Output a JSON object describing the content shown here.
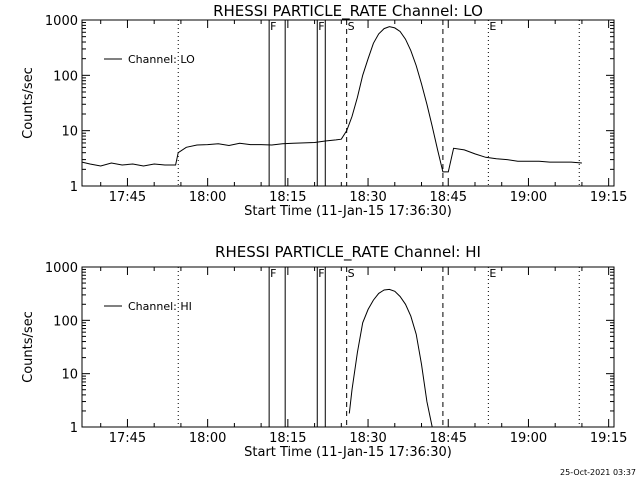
{
  "footer": {
    "timestamp": "25-Oct-2021 03:37"
  },
  "chart_data": [
    {
      "type": "line",
      "title": "RHESSI PARTICLE_RATE Channel: LO",
      "xlabel": "Start Time (11-Jan-15 17:36:30)",
      "ylabel": "Counts/sec",
      "yscale": "log",
      "ylim": [
        1,
        1000
      ],
      "xlim": [
        "17:36:30",
        "19:16:00"
      ],
      "x_ticks": [
        "17:45",
        "18:00",
        "18:15",
        "18:30",
        "18:45",
        "19:00",
        "19:15"
      ],
      "y_ticks": [
        "1",
        "10",
        "100",
        "1000"
      ],
      "legend": {
        "position": "top-left",
        "entries": [
          "Channel: LO"
        ]
      },
      "grid": false,
      "markers": [
        {
          "time": "17:54:30",
          "style": "dotted",
          "label": ""
        },
        {
          "time": "18:11:30",
          "style": "solid",
          "label": "F"
        },
        {
          "time": "18:14:30",
          "style": "solid",
          "label": ""
        },
        {
          "time": "18:20:30",
          "style": "solid",
          "label": "F"
        },
        {
          "time": "18:22:00",
          "style": "solid",
          "label": ""
        },
        {
          "time": "18:26:00",
          "style": "dashed",
          "label": "S"
        },
        {
          "time": "18:44:00",
          "style": "dashed",
          "label": ""
        },
        {
          "time": "18:52:30",
          "style": "dotted",
          "label": "E"
        },
        {
          "time": "19:09:30",
          "style": "dotted",
          "label": ""
        }
      ],
      "series": [
        {
          "name": "Channel: LO",
          "x": [
            "17:36:30",
            "17:38:00",
            "17:40:00",
            "17:42:00",
            "17:44:00",
            "17:46:00",
            "17:48:00",
            "17:50:00",
            "17:52:00",
            "17:54:00",
            "17:54:30",
            "17:56:00",
            "17:58:00",
            "18:00:00",
            "18:02:00",
            "18:04:00",
            "18:06:00",
            "18:08:00",
            "18:10:00",
            "18:12:00",
            "18:14:00",
            "18:16:00",
            "18:18:00",
            "18:20:00",
            "18:22:00",
            "18:24:00",
            "18:25:00",
            "18:26:00",
            "18:27:00",
            "18:28:00",
            "18:29:00",
            "18:30:00",
            "18:31:00",
            "18:32:00",
            "18:33:00",
            "18:34:00",
            "18:35:00",
            "18:36:00",
            "18:37:00",
            "18:38:00",
            "18:39:00",
            "18:40:00",
            "18:41:00",
            "18:42:00",
            "18:43:00",
            "18:44:00",
            "18:45:00",
            "18:46:00",
            "18:48:00",
            "18:50:00",
            "18:52:00",
            "18:54:00",
            "18:56:00",
            "18:58:00",
            "19:00:00",
            "19:02:00",
            "19:04:00",
            "19:06:00",
            "19:08:00",
            "19:10:00"
          ],
          "y": [
            2.7,
            2.5,
            2.3,
            2.6,
            2.4,
            2.5,
            2.3,
            2.5,
            2.4,
            2.4,
            4,
            5,
            5.5,
            5.6,
            5.8,
            5.4,
            5.9,
            5.6,
            5.6,
            5.5,
            5.8,
            5.9,
            6.0,
            6.1,
            6.5,
            6.8,
            7,
            10,
            18,
            40,
            100,
            200,
            380,
            560,
            700,
            760,
            720,
            620,
            450,
            280,
            150,
            70,
            30,
            12,
            4.5,
            1.8,
            1.8,
            4.8,
            4.5,
            3.8,
            3.3,
            3.1,
            3.0,
            2.8,
            2.8,
            2.8,
            2.7,
            2.7,
            2.7,
            2.6
          ]
        }
      ]
    },
    {
      "type": "line",
      "title": "RHESSI PARTICLE_RATE Channel: HI",
      "xlabel": "Start Time (11-Jan-15 17:36:30)",
      "ylabel": "Counts/sec",
      "yscale": "log",
      "ylim": [
        1,
        1000
      ],
      "xlim": [
        "17:36:30",
        "19:16:00"
      ],
      "x_ticks": [
        "17:45",
        "18:00",
        "18:15",
        "18:30",
        "18:45",
        "19:00",
        "19:15"
      ],
      "y_ticks": [
        "1",
        "10",
        "100",
        "1000"
      ],
      "legend": {
        "position": "top-left",
        "entries": [
          "Channel: HI"
        ]
      },
      "grid": false,
      "markers": [
        {
          "time": "17:54:30",
          "style": "dotted",
          "label": ""
        },
        {
          "time": "18:11:30",
          "style": "solid",
          "label": "F"
        },
        {
          "time": "18:14:30",
          "style": "solid",
          "label": ""
        },
        {
          "time": "18:20:30",
          "style": "solid",
          "label": "F"
        },
        {
          "time": "18:22:00",
          "style": "solid",
          "label": ""
        },
        {
          "time": "18:26:00",
          "style": "dashed",
          "label": "S"
        },
        {
          "time": "18:44:00",
          "style": "dashed",
          "label": ""
        },
        {
          "time": "18:52:30",
          "style": "dotted",
          "label": "E"
        },
        {
          "time": "19:09:30",
          "style": "dotted",
          "label": ""
        }
      ],
      "series": [
        {
          "name": "Channel: HI",
          "x": [
            "18:26:30",
            "18:27:00",
            "18:28:00",
            "18:29:00",
            "18:30:00",
            "18:31:00",
            "18:32:00",
            "18:33:00",
            "18:34:00",
            "18:35:00",
            "18:36:00",
            "18:37:00",
            "18:38:00",
            "18:39:00",
            "18:40:00",
            "18:41:00",
            "18:42:00"
          ],
          "y": [
            1.8,
            5,
            25,
            90,
            160,
            240,
            320,
            370,
            380,
            350,
            280,
            200,
            120,
            55,
            15,
            3,
            1
          ]
        }
      ]
    }
  ]
}
